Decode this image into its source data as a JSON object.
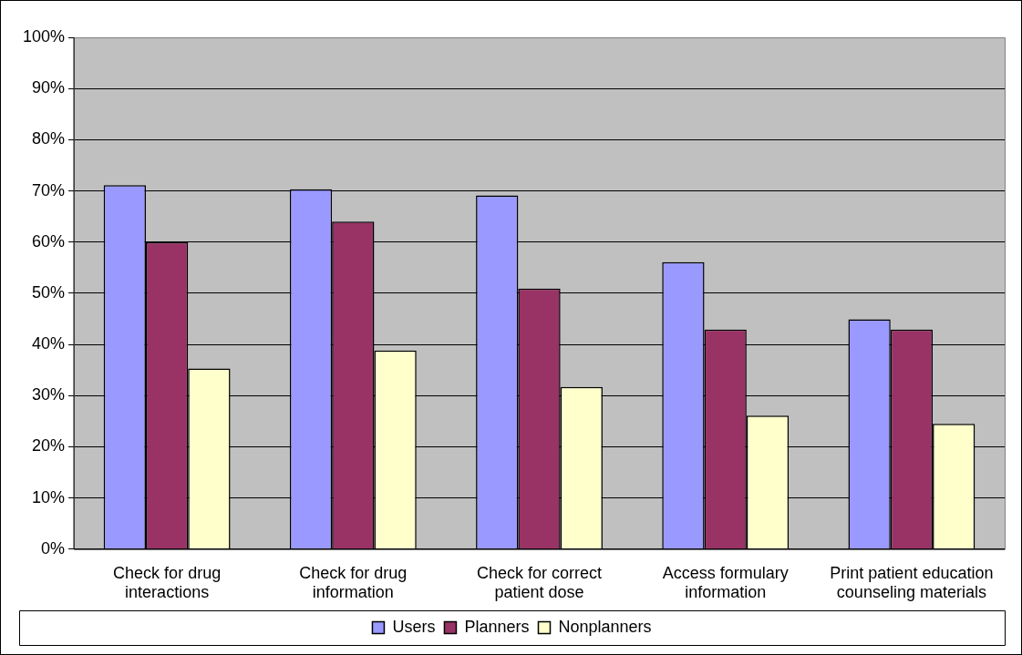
{
  "chart_data": {
    "type": "bar",
    "categories": [
      "Check for drug interactions",
      "Check for drug information",
      "Check for correct patient dose",
      "Access formulary information",
      "Print patient education counseling materials"
    ],
    "series": [
      {
        "name": "Users",
        "color": "#9999ff",
        "values": [
          71.1,
          70.3,
          69.1,
          56.1,
          44.9
        ]
      },
      {
        "name": "Planners",
        "color": "#993366",
        "values": [
          60,
          64,
          50.9,
          42.9,
          42.9
        ]
      },
      {
        "name": "Nonplanners",
        "color": "#ffffcc",
        "values": [
          35.3,
          38.8,
          31.7,
          26.1,
          24.5
        ]
      }
    ],
    "ylim": [
      0,
      100
    ],
    "yticks": [
      {
        "value": 0,
        "label": "0%"
      },
      {
        "value": 10,
        "label": "10%"
      },
      {
        "value": 20,
        "label": "20%"
      },
      {
        "value": 30,
        "label": "30%"
      },
      {
        "value": 40,
        "label": "40%"
      },
      {
        "value": 50,
        "label": "50%"
      },
      {
        "value": 60,
        "label": "60%"
      },
      {
        "value": 70,
        "label": "70%"
      },
      {
        "value": 80,
        "label": "80%"
      },
      {
        "value": 90,
        "label": "90%"
      },
      {
        "value": 100,
        "label": "100%"
      }
    ],
    "grid": "y",
    "legend": "bottom"
  }
}
